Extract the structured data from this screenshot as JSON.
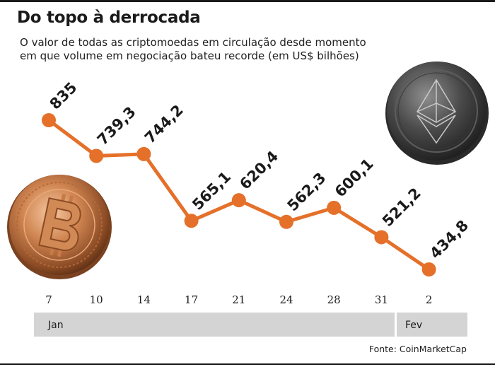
{
  "header": {
    "title": "Do topo à derrocada",
    "subtitle_line1": "O valor de todas as criptomoedas em circulação desde momento",
    "subtitle_line2": "em que volume em negociação bateu recorde (em US$ bilhões)"
  },
  "footer": {
    "source": "Fonte: CoinMarketCap"
  },
  "colors": {
    "line": "#e5702a",
    "month_band": "#d4d4d4",
    "text": "#1a1a1a"
  },
  "icons": [
    "bitcoin-coin-icon",
    "ethereum-coin-icon"
  ],
  "chart_data": {
    "type": "line",
    "title": "Do topo à derrocada",
    "subtitle": "O valor de todas as criptomoedas em circulação desde momento em que volume em negociação bateu recorde (em US$ bilhões)",
    "xlabel": "",
    "ylabel": "",
    "categories": [
      "7",
      "10",
      "14",
      "17",
      "21",
      "24",
      "28",
      "31",
      "2"
    ],
    "months": [
      {
        "label": "Jan",
        "span": 8
      },
      {
        "label": "Fev",
        "span": 1
      }
    ],
    "values": [
      835,
      739.3,
      744.2,
      565.1,
      620.4,
      562.3,
      600.1,
      521.2,
      434.8
    ],
    "labels": [
      "835",
      "739,3",
      "744,2",
      "565,1",
      "620,4",
      "562,3",
      "600,1",
      "521,2",
      "434,8"
    ],
    "ylim": [
      434.8,
      835
    ],
    "grid": false,
    "legend": "none"
  }
}
